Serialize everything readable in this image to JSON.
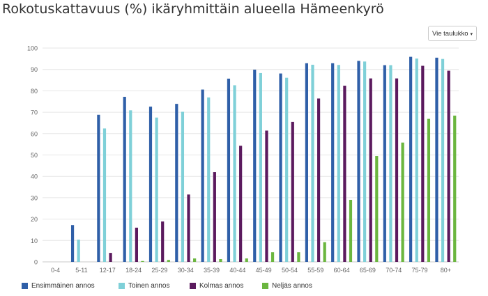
{
  "header": {
    "title": "Rokotuskattavuus (%) ikäryhmittäin alueella Hämeenkyrö",
    "export_label": "Vie taulukko",
    "export_caret": "▾"
  },
  "chart_data": {
    "type": "bar",
    "title": "Rokotuskattavuus (%) ikäryhmittäin alueella Hämeenkyrö",
    "categories": [
      "0-4",
      "5-11",
      "12-17",
      "18-24",
      "25-29",
      "30-34",
      "35-39",
      "40-44",
      "45-49",
      "50-54",
      "55-59",
      "60-64",
      "65-69",
      "70-74",
      "75-79",
      "80+"
    ],
    "ylim": [
      0,
      100
    ],
    "yticks": [
      0,
      10,
      20,
      30,
      40,
      50,
      60,
      70,
      80,
      90,
      100
    ],
    "grid": true,
    "legend_position": "bottom",
    "series": [
      {
        "name": "Ensimmäinen annos",
        "color": "#2f5fa8",
        "values": [
          0,
          17.2,
          68.8,
          77.2,
          72.6,
          73.9,
          80.6,
          85.7,
          89.9,
          88.1,
          92.9,
          92.9,
          94.0,
          92.0,
          95.9,
          95.5
        ]
      },
      {
        "name": "Toinen annos",
        "color": "#7fd0d8",
        "values": [
          0,
          10.4,
          62.4,
          70.9,
          67.5,
          70.2,
          76.9,
          82.6,
          88.3,
          86.1,
          92.2,
          92.1,
          93.7,
          92.0,
          95.1,
          94.9
        ]
      },
      {
        "name": "Kolmas annos",
        "color": "#5b1a5e",
        "values": [
          0,
          0,
          4.2,
          16.0,
          18.9,
          31.5,
          42.0,
          54.3,
          61.4,
          65.5,
          76.4,
          82.4,
          85.8,
          85.8,
          91.7,
          89.4
        ]
      },
      {
        "name": "Neljäs annos",
        "color": "#6bb63f",
        "values": [
          0,
          0,
          0,
          0.4,
          0.9,
          1.6,
          1.3,
          1.6,
          4.5,
          4.5,
          9.2,
          29.0,
          49.5,
          55.8,
          66.9,
          68.4
        ]
      }
    ]
  }
}
